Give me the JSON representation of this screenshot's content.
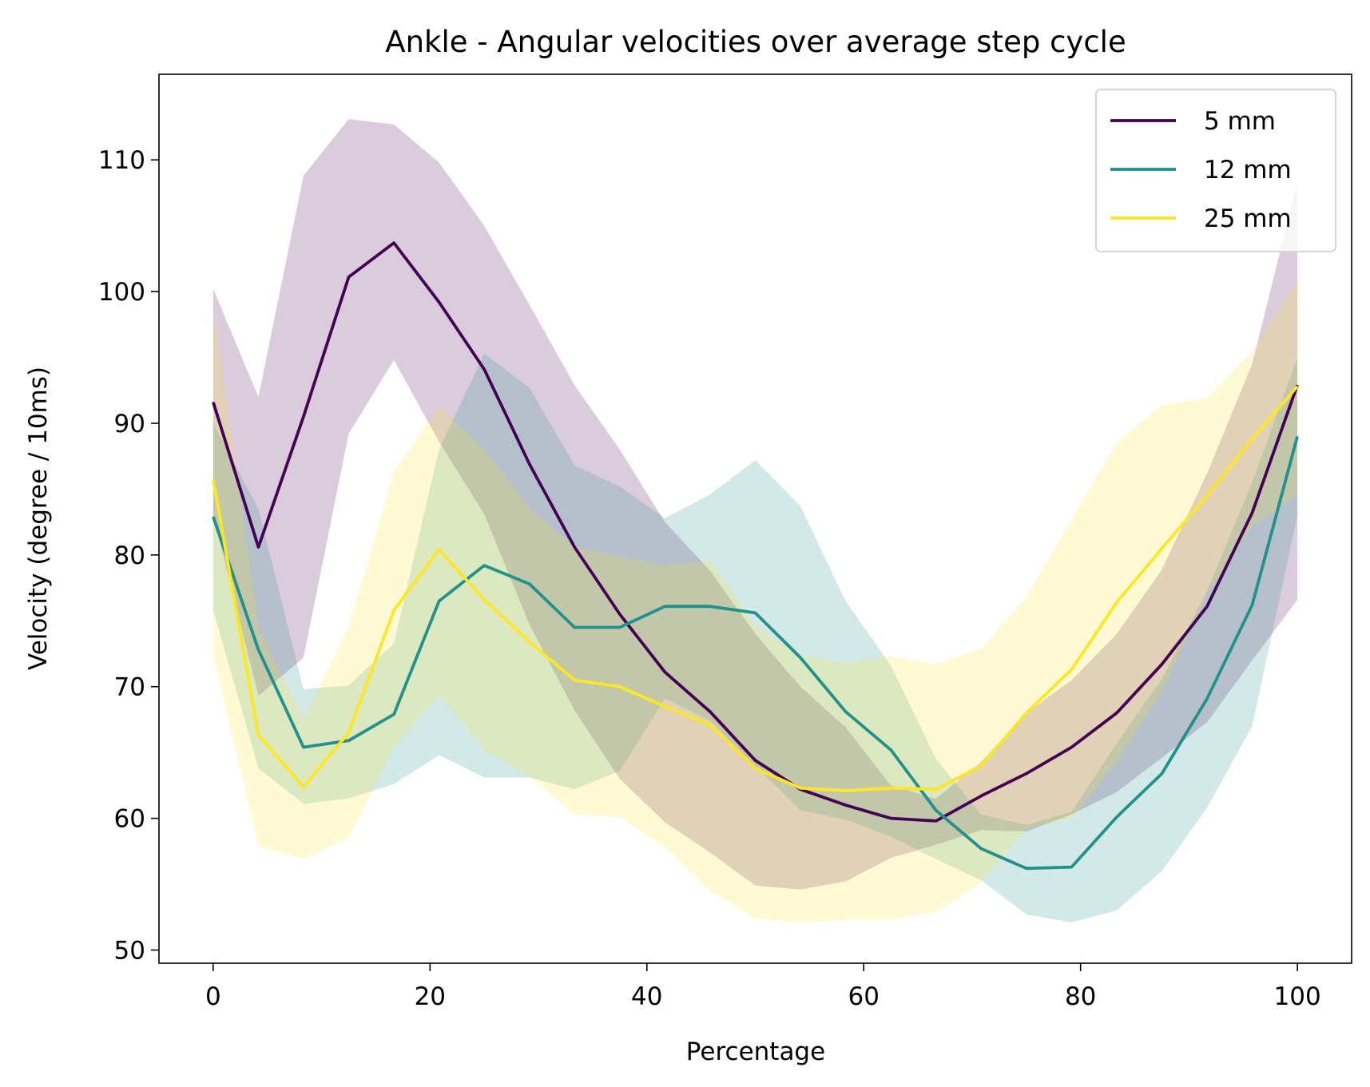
{
  "chart_data": {
    "type": "line",
    "title": "Ankle  - Angular velocities over average step cycle",
    "xlabel": "Percentage",
    "ylabel": "Velocity (degree / 10ms)",
    "xlim": [
      -5,
      105
    ],
    "ylim": [
      49,
      116.5
    ],
    "xticks": [
      0,
      20,
      40,
      60,
      80,
      100
    ],
    "yticks": [
      50,
      60,
      70,
      80,
      90,
      100,
      110
    ],
    "grid": false,
    "legend_position": "top-right",
    "x": [
      0,
      4.17,
      8.33,
      12.5,
      16.67,
      20.83,
      25,
      29.17,
      33.33,
      37.5,
      41.67,
      45.83,
      50,
      54.17,
      58.33,
      62.5,
      66.67,
      70.83,
      75,
      79.17,
      83.33,
      87.5,
      91.67,
      95.83,
      100
    ],
    "series": [
      {
        "name": "5 mm",
        "color": "#440154",
        "values": [
          91.6,
          80.6,
          90.5,
          101.1,
          103.7,
          99.2,
          94.1,
          86.9,
          80.6,
          75.5,
          71.1,
          68.1,
          64.4,
          62.2,
          61.0,
          60.0,
          59.8,
          61.7,
          63.4,
          65.4,
          68.0,
          71.7,
          76.1,
          83.2,
          92.9
        ],
        "upper": [
          100.2,
          92.0,
          108.8,
          113.1,
          112.7,
          109.8,
          105.0,
          99.0,
          92.9,
          88.0,
          82.5,
          78.8,
          74.0,
          70.0,
          66.9,
          62.5,
          61.5,
          64.3,
          68.0,
          70.5,
          74.0,
          78.9,
          86.2,
          94.5,
          108.3
        ],
        "lower": [
          83.0,
          69.3,
          72.2,
          89.2,
          94.8,
          88.6,
          83.1,
          74.7,
          68.2,
          63.0,
          59.7,
          57.4,
          54.9,
          54.6,
          55.2,
          57.0,
          58.0,
          59.1,
          59.0,
          60.3,
          62.0,
          64.6,
          67.3,
          72.0,
          76.6
        ]
      },
      {
        "name": "12 mm",
        "color": "#21918c",
        "values": [
          82.9,
          72.8,
          65.4,
          65.9,
          67.9,
          76.5,
          79.2,
          77.8,
          74.5,
          74.5,
          76.1,
          76.1,
          75.6,
          72.2,
          68.1,
          65.2,
          60.6,
          57.7,
          56.2,
          56.3,
          60.1,
          63.4,
          69.1,
          76.2,
          89.0
        ],
        "upper": [
          90.0,
          83.5,
          69.8,
          70.1,
          73.3,
          88.0,
          95.3,
          92.7,
          86.8,
          85.2,
          82.8,
          84.6,
          87.2,
          83.7,
          76.5,
          71.6,
          64.5,
          60.3,
          59.5,
          60.5,
          65.7,
          70.6,
          77.3,
          85.5,
          95.0
        ],
        "lower": [
          75.8,
          63.8,
          61.1,
          61.5,
          62.6,
          64.8,
          63.1,
          63.1,
          62.2,
          63.6,
          69.1,
          67.4,
          64.0,
          60.6,
          59.9,
          58.6,
          56.9,
          55.3,
          52.7,
          52.1,
          53.0,
          56.0,
          60.8,
          67.0,
          83.0
        ]
      },
      {
        "name": "25 mm",
        "color": "#fde725",
        "values": [
          85.7,
          66.3,
          62.4,
          66.5,
          75.8,
          80.4,
          76.6,
          73.4,
          70.5,
          70.0,
          68.5,
          67.1,
          63.8,
          62.3,
          62.1,
          62.3,
          62.2,
          64.0,
          68.0,
          71.3,
          76.4,
          80.5,
          84.5,
          88.8,
          92.8
        ],
        "upper": [
          99.0,
          74.5,
          67.5,
          74.6,
          86.3,
          91.3,
          88.0,
          83.6,
          80.6,
          79.9,
          79.2,
          79.6,
          74.6,
          72.4,
          71.8,
          72.3,
          71.7,
          72.9,
          76.8,
          82.7,
          88.5,
          91.4,
          91.9,
          95.4,
          101.0
        ],
        "lower": [
          72.3,
          57.9,
          56.9,
          58.5,
          65.4,
          69.4,
          65.2,
          63.2,
          60.3,
          60.1,
          57.8,
          54.5,
          52.4,
          52.1,
          52.3,
          52.3,
          52.9,
          55.1,
          59.2,
          60.0,
          64.3,
          69.6,
          77.0,
          82.2,
          84.6
        ]
      }
    ]
  }
}
